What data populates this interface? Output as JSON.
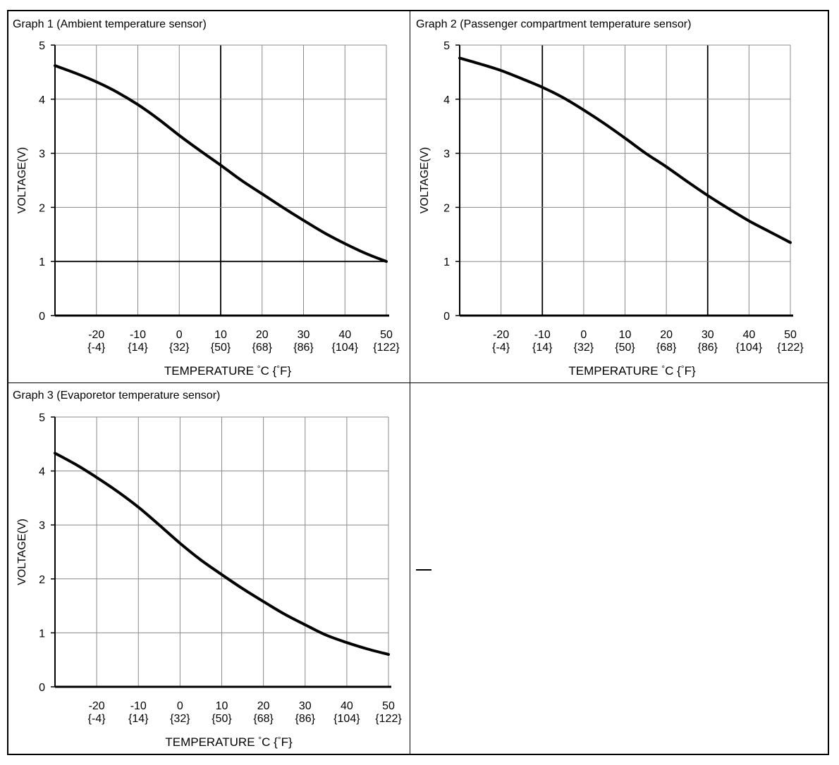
{
  "chart_data": [
    {
      "type": "line",
      "title": "Graph 1 (Ambient temperature sensor)",
      "xlabel_prefix": "TEMPERATURE",
      "xlabel_unit_c": "C {",
      "xlabel_unit_f": "F}",
      "degree_symbol": "°",
      "ylabel": "VOLTAGE(V)",
      "xlim": [
        -30,
        50
      ],
      "ylim": [
        0,
        5
      ],
      "x_ticks": [
        {
          "c": "-20",
          "f": "{-4}",
          "value": -20
        },
        {
          "c": "-10",
          "f": "{14}",
          "value": -10
        },
        {
          "c": "0",
          "f": "{32}",
          "value": 0
        },
        {
          "c": "10",
          "f": "{50}",
          "value": 10
        },
        {
          "c": "20",
          "f": "{68}",
          "value": 20
        },
        {
          "c": "30",
          "f": "{86}",
          "value": 30
        },
        {
          "c": "40",
          "f": "{104}",
          "value": 40
        },
        {
          "c": "50",
          "f": "{122}",
          "value": 50
        }
      ],
      "y_ticks": [
        "0",
        "1",
        "2",
        "3",
        "4",
        "5"
      ],
      "grid": true,
      "emphasized_grid_x": [
        10
      ],
      "emphasized_grid_y": [
        1
      ],
      "series": [
        {
          "x": [
            -30,
            -25,
            -20,
            -15,
            -10,
            -5,
            0,
            5,
            10,
            15,
            20,
            25,
            30,
            35,
            40,
            45,
            50
          ],
          "y": [
            4.62,
            4.48,
            4.32,
            4.13,
            3.9,
            3.63,
            3.33,
            3.05,
            2.78,
            2.5,
            2.25,
            2.0,
            1.76,
            1.53,
            1.33,
            1.15,
            1.0
          ]
        }
      ]
    },
    {
      "type": "line",
      "title": "Graph 2 (Passenger compartment temperature sensor)",
      "xlabel_prefix": "TEMPERATURE",
      "xlabel_unit_c": "C {",
      "xlabel_unit_f": "F}",
      "degree_symbol": "°",
      "ylabel": "VOLTAGE(V)",
      "xlim": [
        -30,
        50
      ],
      "ylim": [
        0,
        5
      ],
      "x_ticks": [
        {
          "c": "-20",
          "f": "{-4}",
          "value": -20
        },
        {
          "c": "-10",
          "f": "{14}",
          "value": -10
        },
        {
          "c": "0",
          "f": "{32}",
          "value": 0
        },
        {
          "c": "10",
          "f": "{50}",
          "value": 10
        },
        {
          "c": "20",
          "f": "{68}",
          "value": 20
        },
        {
          "c": "30",
          "f": "{86}",
          "value": 30
        },
        {
          "c": "40",
          "f": "{104}",
          "value": 40
        },
        {
          "c": "50",
          "f": "{122}",
          "value": 50
        }
      ],
      "y_ticks": [
        "0",
        "1",
        "2",
        "3",
        "4",
        "5"
      ],
      "grid": true,
      "emphasized_grid_x": [
        -10,
        30
      ],
      "emphasized_grid_y": [],
      "series": [
        {
          "x": [
            -30,
            -25,
            -20,
            -15,
            -10,
            -5,
            0,
            5,
            10,
            15,
            20,
            25,
            30,
            35,
            40,
            45,
            50
          ],
          "y": [
            4.76,
            4.65,
            4.53,
            4.38,
            4.22,
            4.03,
            3.8,
            3.55,
            3.28,
            3.0,
            2.75,
            2.48,
            2.22,
            1.98,
            1.75,
            1.55,
            1.35
          ]
        }
      ]
    },
    {
      "type": "line",
      "title": "Graph 3 (Evaporetor temperature sensor)",
      "xlabel_prefix": "TEMPERATURE",
      "xlabel_unit_c": "C {",
      "xlabel_unit_f": "F}",
      "degree_symbol": "°",
      "ylabel": "VOLTAGE(V)",
      "xlim": [
        -30,
        50
      ],
      "ylim": [
        0,
        5
      ],
      "x_ticks": [
        {
          "c": "-20",
          "f": "{-4}",
          "value": -20
        },
        {
          "c": "-10",
          "f": "{14}",
          "value": -10
        },
        {
          "c": "0",
          "f": "{32}",
          "value": 0
        },
        {
          "c": "10",
          "f": "{50}",
          "value": 10
        },
        {
          "c": "20",
          "f": "{68}",
          "value": 20
        },
        {
          "c": "30",
          "f": "{86}",
          "value": 30
        },
        {
          "c": "40",
          "f": "{104}",
          "value": 40
        },
        {
          "c": "50",
          "f": "{122}",
          "value": 50
        }
      ],
      "y_ticks": [
        "0",
        "1",
        "2",
        "3",
        "4",
        "5"
      ],
      "grid": true,
      "emphasized_grid_x": [],
      "emphasized_grid_y": [],
      "series": [
        {
          "x": [
            -30,
            -25,
            -20,
            -15,
            -10,
            -5,
            0,
            5,
            10,
            15,
            20,
            25,
            30,
            35,
            40,
            45,
            50
          ],
          "y": [
            4.33,
            4.12,
            3.88,
            3.62,
            3.33,
            3.0,
            2.66,
            2.35,
            2.08,
            1.82,
            1.58,
            1.35,
            1.15,
            0.96,
            0.82,
            0.7,
            0.6
          ]
        }
      ]
    }
  ]
}
